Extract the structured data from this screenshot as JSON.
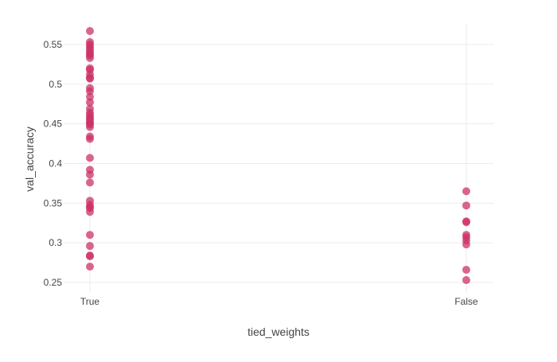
{
  "chart_data": {
    "type": "scatter",
    "title": "",
    "xlabel": "tied_weights",
    "ylabel": "val_accuracy",
    "categories": [
      "True",
      "False"
    ],
    "y_ticks": [
      "0.25",
      "0.3",
      "0.35",
      "0.4",
      "0.45",
      "0.5",
      "0.55"
    ],
    "ylim": [
      0.237,
      0.576
    ],
    "grid": true,
    "legend": "none",
    "marker_color": "#cc3366",
    "series": [
      {
        "category": "True",
        "values": [
          0.567,
          0.553,
          0.55,
          0.547,
          0.544,
          0.541,
          0.538,
          0.536,
          0.533,
          0.52,
          0.518,
          0.512,
          0.508,
          0.507,
          0.495,
          0.491,
          0.484,
          0.477,
          0.469,
          0.464,
          0.461,
          0.458,
          0.456,
          0.453,
          0.451,
          0.449,
          0.446,
          0.434,
          0.431,
          0.407,
          0.392,
          0.386,
          0.376,
          0.353,
          0.348,
          0.345,
          0.344,
          0.339,
          0.31,
          0.296,
          0.284,
          0.283,
          0.27
        ]
      },
      {
        "category": "False",
        "values": [
          0.365,
          0.347,
          0.327,
          0.326,
          0.31,
          0.307,
          0.303,
          0.298,
          0.266,
          0.253
        ]
      }
    ]
  }
}
